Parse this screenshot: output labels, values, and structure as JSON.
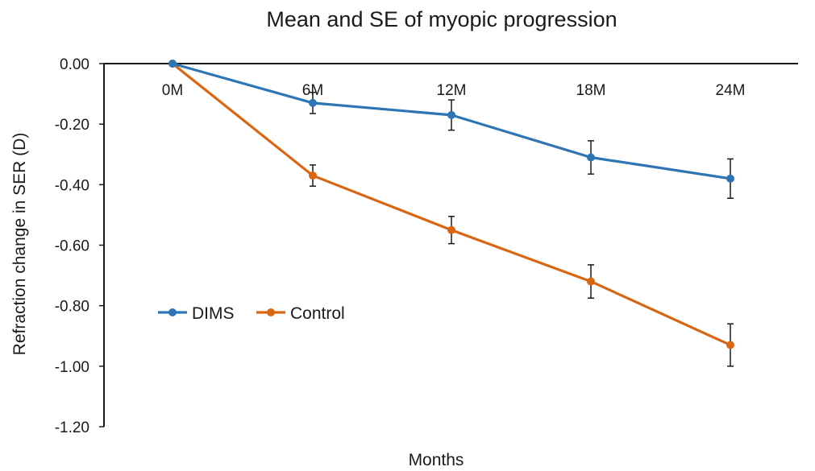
{
  "chart_data": {
    "type": "line",
    "title": "Mean and SE of myopic progression",
    "xlabel": "Months",
    "ylabel": "Refraction change in SER (D)",
    "categories": [
      "0M",
      "6M",
      "12M",
      "18M",
      "24M"
    ],
    "ylim": [
      -1.2,
      0.0
    ],
    "yticks": [
      "0.00",
      "-0.20",
      "-0.40",
      "-0.60",
      "-0.80",
      "-1.00",
      "-1.20"
    ],
    "ytick_values": [
      0.0,
      -0.2,
      -0.4,
      -0.6,
      -0.8,
      -1.0,
      -1.2
    ],
    "grid": false,
    "legend_position": "middle-left",
    "series": [
      {
        "name": "DIMS",
        "color": "#2E75B6",
        "values": [
          0.0,
          -0.13,
          -0.17,
          -0.31,
          -0.38
        ],
        "se": [
          0.0,
          0.035,
          0.05,
          0.055,
          0.065
        ]
      },
      {
        "name": "Control",
        "color": "#D86613",
        "values": [
          0.0,
          -0.37,
          -0.55,
          -0.72,
          -0.93
        ],
        "se": [
          0.0,
          0.035,
          0.045,
          0.055,
          0.07
        ]
      }
    ]
  }
}
